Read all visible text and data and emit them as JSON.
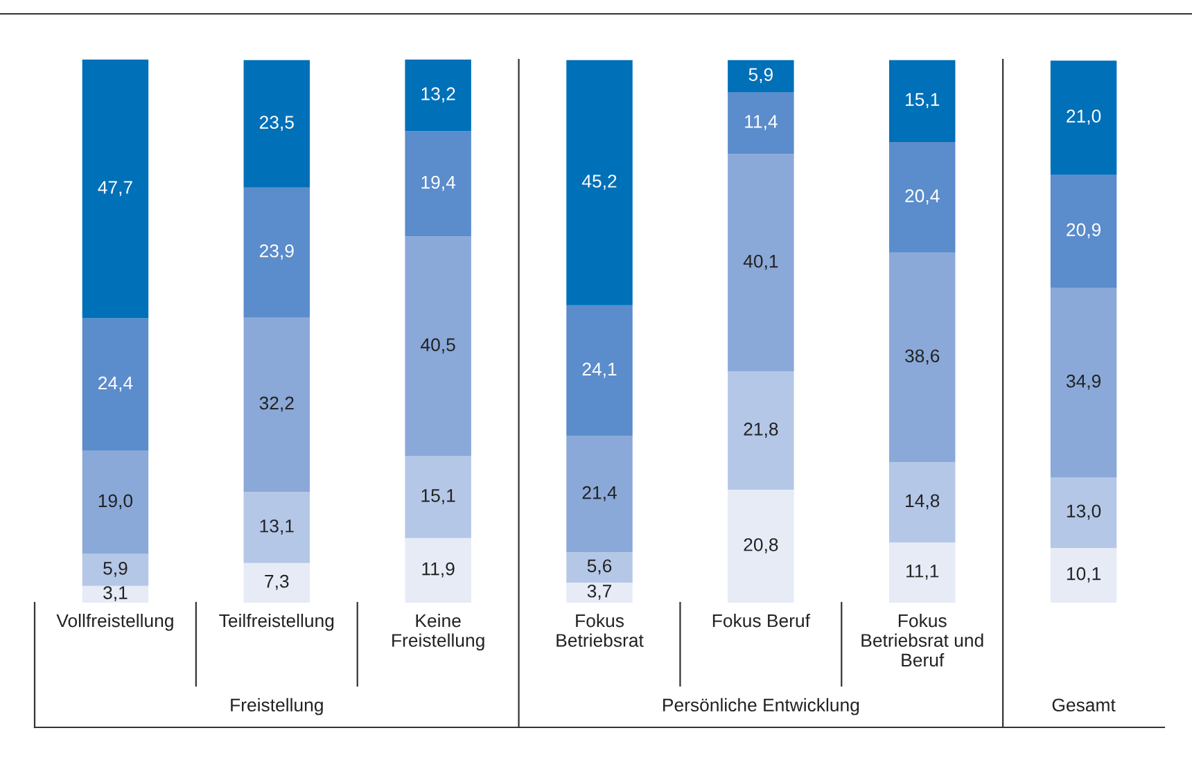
{
  "chart_data": {
    "type": "bar",
    "stacked": true,
    "categories": [
      "Vollfreistellung",
      "Teilfreistellung",
      "Keine\nFreistellung",
      "Fokus\nBetriebsrat",
      "Fokus Beruf",
      "Fokus\nBetriebsrat und\nBeruf",
      null
    ],
    "series": [
      {
        "color": "#e6ebf6",
        "values": [
          3.1,
          7.3,
          11.9,
          3.7,
          20.8,
          11.1,
          10.1
        ],
        "value_labels": [
          "3,1",
          "7,3",
          "11,9",
          "3,7",
          "20,8",
          "11,1",
          "10,1"
        ]
      },
      {
        "color": "#b5c7e7",
        "values": [
          5.9,
          13.1,
          15.1,
          5.6,
          21.8,
          14.8,
          13.0
        ],
        "value_labels": [
          "5,9",
          "13,1",
          "15,1",
          "5,6",
          "21,8",
          "14,8",
          "13,0"
        ]
      },
      {
        "color": "#8aa9d8",
        "values": [
          19.0,
          32.2,
          40.5,
          21.4,
          40.1,
          38.6,
          34.9
        ],
        "value_labels": [
          "19,0",
          "32,2",
          "40,5",
          "21,4",
          "40,1",
          "38,6",
          "34,9"
        ]
      },
      {
        "color": "#5b8ccb",
        "values": [
          24.4,
          23.9,
          19.4,
          24.1,
          11.4,
          20.4,
          20.9
        ],
        "value_labels": [
          "24,4",
          "23,9",
          "19,4",
          "24,1",
          "11,4",
          "20,4",
          "20,9"
        ]
      },
      {
        "color": "#0070b8",
        "values": [
          47.7,
          23.5,
          13.2,
          45.2,
          5.9,
          15.1,
          21.0
        ],
        "value_labels": [
          "47,7",
          "23,5",
          "13,2",
          "45,2",
          "5,9",
          "15,1",
          "21,0"
        ]
      }
    ],
    "annotations": [
      "Freistellung",
      "Persönliche Entwicklung",
      "Gesamt"
    ]
  }
}
